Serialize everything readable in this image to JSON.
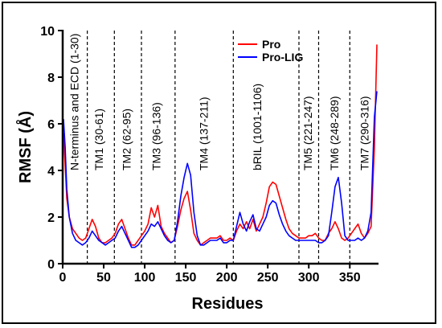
{
  "chart_data": {
    "type": "line",
    "title": "",
    "xlabel": "Residues",
    "ylabel": "RMSF (Å)",
    "xlim": [
      0,
      385
    ],
    "ylim": [
      0,
      10
    ],
    "xticks": [
      0,
      50,
      100,
      150,
      200,
      250,
      300,
      350
    ],
    "yticks": [
      0,
      2,
      4,
      6,
      8,
      10
    ],
    "legend_position": "top-center",
    "region_boundaries": [
      30,
      63,
      96,
      137,
      208,
      288,
      312,
      350
    ],
    "regions": [
      {
        "label": "N-terminus and ECD (1-30)",
        "center": 14,
        "y": 4.0
      },
      {
        "label": "TM1 (30-61)",
        "center": 44,
        "y": 4.0
      },
      {
        "label": "TM2 (62-95)",
        "center": 78,
        "y": 4.0
      },
      {
        "label": "TM3 (96-136)",
        "center": 114,
        "y": 4.0
      },
      {
        "label": "TM4 (137-211)",
        "center": 172,
        "y": 4.0
      },
      {
        "label": "bRIL (1001-1106)",
        "center": 237,
        "y": 4.0
      },
      {
        "label": "TM5 (221-247)",
        "center": 299,
        "y": 4.0
      },
      {
        "label": "TM6 (248-289)",
        "center": 331,
        "y": 4.0
      },
      {
        "label": "TM7 (290-316)",
        "center": 368,
        "y": 4.0
      }
    ],
    "series": [
      {
        "name": "Pro",
        "color": "#ff0000",
        "x": [
          1,
          3,
          5,
          8,
          12,
          16,
          20,
          24,
          28,
          32,
          36,
          40,
          44,
          48,
          52,
          56,
          60,
          64,
          68,
          72,
          76,
          80,
          84,
          88,
          92,
          96,
          100,
          104,
          108,
          112,
          116,
          120,
          124,
          128,
          132,
          136,
          140,
          144,
          148,
          152,
          156,
          160,
          164,
          168,
          172,
          176,
          180,
          184,
          188,
          192,
          196,
          200,
          204,
          208,
          212,
          216,
          220,
          224,
          228,
          232,
          236,
          240,
          244,
          248,
          252,
          256,
          260,
          264,
          268,
          272,
          276,
          280,
          284,
          288,
          292,
          296,
          300,
          304,
          308,
          312,
          316,
          320,
          324,
          328,
          332,
          336,
          340,
          344,
          348,
          352,
          356,
          360,
          364,
          368,
          372,
          376,
          380,
          383
        ],
        "y": [
          5.6,
          4.2,
          2.8,
          2.0,
          1.5,
          1.3,
          1.1,
          1.0,
          1.1,
          1.5,
          1.9,
          1.6,
          1.1,
          0.9,
          0.9,
          1.0,
          1.1,
          1.3,
          1.7,
          1.9,
          1.5,
          1.1,
          0.8,
          0.8,
          1.0,
          1.2,
          1.4,
          1.7,
          2.4,
          2.0,
          2.5,
          1.6,
          1.3,
          1.1,
          0.9,
          1.0,
          1.6,
          2.3,
          2.8,
          3.1,
          2.3,
          1.3,
          1.0,
          0.8,
          0.9,
          1.0,
          1.1,
          1.1,
          1.1,
          1.2,
          1.0,
          1.0,
          1.1,
          1.0,
          1.4,
          1.7,
          1.5,
          1.8,
          1.5,
          1.9,
          1.4,
          1.7,
          2.0,
          2.6,
          3.3,
          3.5,
          3.4,
          2.9,
          2.4,
          1.9,
          1.5,
          1.3,
          1.2,
          1.1,
          1.1,
          1.1,
          1.2,
          1.2,
          1.3,
          1.1,
          1.0,
          1.0,
          1.3,
          1.5,
          1.8,
          1.5,
          1.1,
          1.0,
          1.1,
          1.3,
          1.5,
          1.7,
          1.3,
          1.1,
          1.3,
          1.6,
          5.0,
          9.4
        ]
      },
      {
        "name": "Pro-LIG",
        "color": "#0000ff",
        "x": [
          1,
          3,
          5,
          8,
          12,
          16,
          20,
          24,
          28,
          32,
          36,
          40,
          44,
          48,
          52,
          56,
          60,
          64,
          68,
          72,
          76,
          80,
          84,
          88,
          92,
          96,
          100,
          104,
          108,
          112,
          116,
          120,
          124,
          128,
          132,
          136,
          140,
          144,
          148,
          152,
          156,
          160,
          164,
          168,
          172,
          176,
          180,
          184,
          188,
          192,
          196,
          200,
          204,
          208,
          212,
          216,
          220,
          224,
          228,
          232,
          236,
          240,
          244,
          248,
          252,
          256,
          260,
          264,
          268,
          272,
          276,
          280,
          284,
          288,
          292,
          296,
          300,
          304,
          308,
          312,
          316,
          320,
          324,
          328,
          332,
          336,
          340,
          344,
          348,
          352,
          356,
          360,
          364,
          368,
          372,
          376,
          380,
          383
        ],
        "y": [
          6.2,
          5.0,
          3.2,
          2.0,
          1.3,
          1.0,
          0.9,
          0.8,
          0.9,
          1.1,
          1.4,
          1.2,
          1.0,
          0.9,
          0.8,
          0.9,
          1.0,
          1.1,
          1.4,
          1.6,
          1.3,
          1.0,
          0.7,
          0.7,
          0.8,
          1.0,
          1.2,
          1.4,
          1.7,
          1.6,
          1.8,
          1.5,
          1.2,
          1.0,
          0.9,
          1.0,
          1.8,
          2.9,
          3.7,
          4.3,
          3.8,
          2.2,
          1.2,
          0.8,
          0.8,
          0.9,
          1.0,
          1.0,
          1.0,
          1.1,
          0.9,
          0.9,
          1.0,
          1.0,
          1.6,
          2.2,
          1.7,
          1.4,
          1.8,
          2.1,
          1.5,
          1.4,
          1.7,
          2.0,
          2.5,
          2.7,
          2.6,
          2.1,
          1.7,
          1.4,
          1.2,
          1.1,
          1.0,
          1.0,
          1.0,
          1.0,
          1.0,
          1.0,
          1.0,
          0.9,
          0.9,
          1.0,
          1.2,
          2.2,
          3.3,
          3.7,
          2.6,
          1.2,
          1.0,
          1.0,
          1.0,
          1.1,
          1.0,
          1.1,
          1.4,
          2.2,
          6.3,
          7.4
        ]
      }
    ]
  }
}
